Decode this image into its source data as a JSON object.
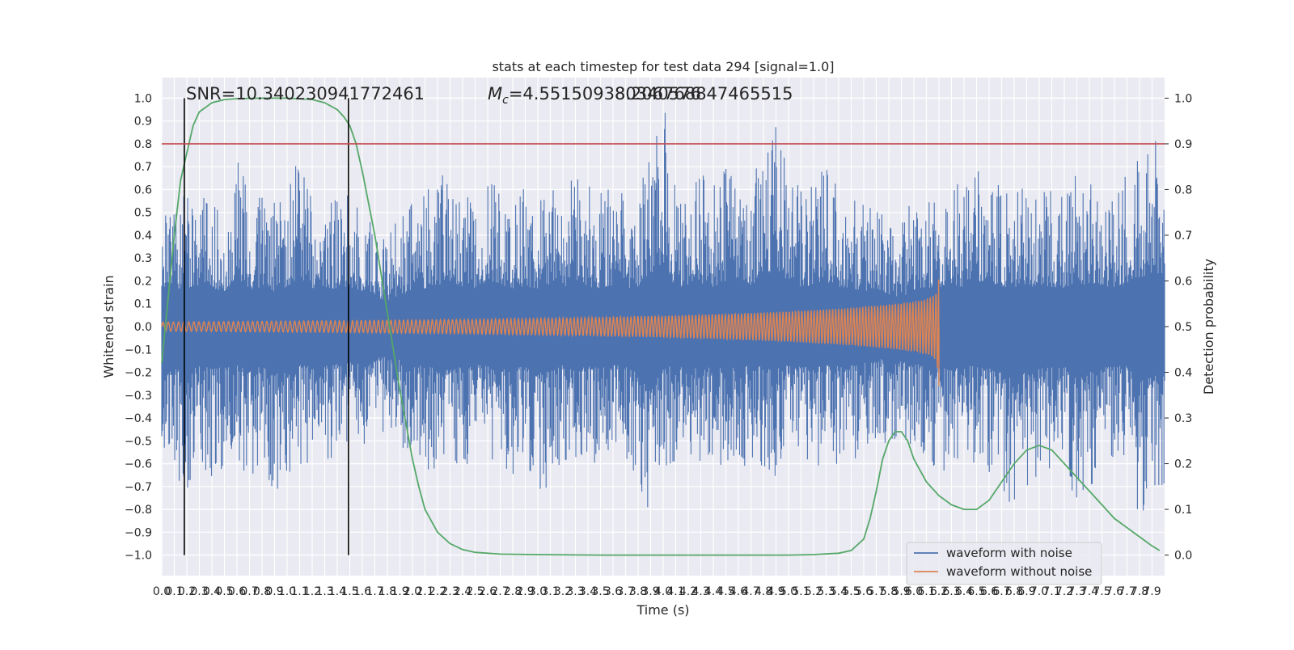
{
  "chart_data": {
    "type": "line",
    "title": "stats at each timestep for test data 294 [signal=1.0]",
    "xlabel": "Time (s)",
    "ylabel_left": "Whitened strain",
    "ylabel_right": "Detection probability",
    "xlim": [
      0.0,
      8.0
    ],
    "ylim_left": [
      -1.09,
      1.09
    ],
    "ylim_right": [
      -0.045,
      1.045
    ],
    "grid": true,
    "legend_position": "lower-right",
    "x_tick_labels": [
      "0.0",
      "0.1",
      "0.2",
      "0.3",
      "0.4",
      "0.5",
      "0.6",
      "0.7",
      "0.8",
      "0.9",
      "1.0",
      "1.1",
      "1.2",
      "1.3",
      "1.4",
      "1.5",
      "1.6",
      "1.7",
      "1.8",
      "1.9",
      "2.0",
      "2.1",
      "2.2",
      "2.3",
      "2.4",
      "2.5",
      "2.6",
      "2.7",
      "2.8",
      "2.9",
      "3.0",
      "3.1",
      "3.2",
      "3.3",
      "3.4",
      "3.5",
      "3.6",
      "3.7",
      "3.8",
      "3.9",
      "4.0",
      "4.1",
      "4.2",
      "4.3",
      "4.4",
      "4.5",
      "4.6",
      "4.7",
      "4.8",
      "4.9",
      "5.0",
      "5.1",
      "5.2",
      "5.3",
      "5.4",
      "5.5",
      "5.6",
      "5.7",
      "5.8",
      "5.9",
      "6.0",
      "6.1",
      "6.2",
      "6.3",
      "6.4",
      "6.5",
      "6.6",
      "6.7",
      "6.8",
      "6.9",
      "7.0",
      "7.1",
      "7.2",
      "7.3",
      "7.4",
      "7.5",
      "7.6",
      "7.7",
      "7.8",
      "7.9"
    ],
    "y_tick_labels_left": [
      "−1.0",
      "−0.9",
      "−0.8",
      "−0.7",
      "−0.6",
      "−0.5",
      "−0.4",
      "−0.3",
      "−0.2",
      "−0.1",
      "0.0",
      "0.1",
      "0.2",
      "0.3",
      "0.4",
      "0.5",
      "0.6",
      "0.7",
      "0.8",
      "0.9",
      "1.0"
    ],
    "y_tick_labels_right": [
      "0.0",
      "0.1",
      "0.2",
      "0.3",
      "0.4",
      "0.5",
      "0.6",
      "0.7",
      "0.8",
      "0.9",
      "1.0"
    ],
    "annotations": {
      "snr": "SNR=10.340230941772461",
      "mc_prefix": "M",
      "mc_sub": "c",
      "mc_value": "=4.551509380340576",
      "overlap": "8.206768847465515"
    },
    "markers": {
      "vertical_lines_x": [
        0.18,
        1.49
      ],
      "threshold_right_y": 0.9
    },
    "series": [
      {
        "name": "waveform with noise",
        "color": "#4c72b0",
        "axis": "left",
        "envelope_x": [
          0.0,
          0.1,
          0.2,
          0.3,
          0.4,
          0.5,
          0.6,
          0.7,
          0.8,
          0.9,
          1.0,
          1.1,
          1.2,
          1.3,
          1.4,
          1.5,
          1.6,
          1.7,
          1.8,
          1.9,
          2.0,
          2.1,
          2.2,
          2.3,
          2.4,
          2.5,
          2.6,
          2.7,
          2.8,
          2.9,
          3.0,
          3.1,
          3.2,
          3.3,
          3.4,
          3.5,
          3.6,
          3.7,
          3.8,
          3.9,
          4.0,
          4.1,
          4.2,
          4.3,
          4.4,
          4.5,
          4.6,
          4.7,
          4.8,
          4.9,
          5.0,
          5.1,
          5.2,
          5.3,
          5.4,
          5.5,
          5.6,
          5.7,
          5.8,
          5.9,
          6.0,
          6.1,
          6.2,
          6.3,
          6.4,
          6.5,
          6.6,
          6.7,
          6.8,
          6.9,
          7.0,
          7.1,
          7.2,
          7.3,
          7.4,
          7.5,
          7.6,
          7.7,
          7.8,
          7.9
        ],
        "envelope_max": [
          0.62,
          0.58,
          0.6,
          0.65,
          0.6,
          0.55,
          0.76,
          0.58,
          0.6,
          0.55,
          0.62,
          0.77,
          0.6,
          0.57,
          0.55,
          0.62,
          0.55,
          0.45,
          0.4,
          0.5,
          0.55,
          0.6,
          0.65,
          0.7,
          0.62,
          0.6,
          0.7,
          0.65,
          0.6,
          0.62,
          0.6,
          0.65,
          0.6,
          0.7,
          0.62,
          0.6,
          0.65,
          0.6,
          0.62,
          0.82,
          1.0,
          0.6,
          0.65,
          0.68,
          0.62,
          0.7,
          0.75,
          0.65,
          0.78,
          0.9,
          0.68,
          0.6,
          0.65,
          0.7,
          0.62,
          0.6,
          0.55,
          0.6,
          0.5,
          0.45,
          0.58,
          0.6,
          0.62,
          0.65,
          0.6,
          0.68,
          0.7,
          0.62,
          0.6,
          0.65,
          0.6,
          0.62,
          0.6,
          0.7,
          0.62,
          0.65,
          0.6,
          0.68,
          0.75,
          0.83
        ],
        "envelope_min": [
          -0.72,
          -0.65,
          -0.74,
          -0.6,
          -0.66,
          -0.63,
          -0.6,
          -0.68,
          -0.62,
          -0.75,
          -0.66,
          -0.6,
          -0.62,
          -0.6,
          -0.58,
          -0.55,
          -0.6,
          -0.5,
          -0.45,
          -0.52,
          -0.58,
          -0.62,
          -0.65,
          -0.68,
          -0.62,
          -0.6,
          -0.6,
          -0.66,
          -0.65,
          -0.62,
          -0.72,
          -0.7,
          -0.6,
          -0.66,
          -0.62,
          -0.65,
          -0.6,
          -0.62,
          -0.72,
          -0.98,
          -0.65,
          -0.6,
          -0.62,
          -0.66,
          -0.6,
          -0.62,
          -0.65,
          -0.6,
          -0.62,
          -0.66,
          -0.6,
          -0.62,
          -0.65,
          -0.6,
          -0.62,
          -0.6,
          -0.55,
          -0.5,
          -0.52,
          -0.55,
          -0.58,
          -0.6,
          -0.62,
          -0.65,
          -0.6,
          -0.62,
          -0.65,
          -0.72,
          -0.8,
          -0.7,
          -0.66,
          -0.62,
          -0.6,
          -0.82,
          -0.7,
          -0.65,
          -0.6,
          -0.62,
          -0.84,
          -0.76
        ]
      },
      {
        "name": "waveform without noise",
        "color": "#dd8452",
        "axis": "left",
        "envelope_x": [
          0.0,
          0.5,
          1.0,
          1.5,
          2.0,
          2.5,
          3.0,
          3.5,
          4.0,
          4.5,
          5.0,
          5.5,
          5.8,
          6.0,
          6.1,
          6.15,
          6.18,
          6.2
        ],
        "envelope_amp": [
          0.02,
          0.022,
          0.024,
          0.026,
          0.029,
          0.032,
          0.036,
          0.041,
          0.047,
          0.055,
          0.066,
          0.082,
          0.097,
          0.11,
          0.122,
          0.135,
          0.15,
          0.23
        ]
      },
      {
        "name": "",
        "color": "#55a868",
        "axis": "right",
        "x": [
          0.0,
          0.05,
          0.1,
          0.15,
          0.2,
          0.25,
          0.3,
          0.4,
          0.5,
          0.6,
          0.8,
          1.0,
          1.2,
          1.3,
          1.4,
          1.45,
          1.5,
          1.55,
          1.6,
          1.7,
          1.8,
          1.9,
          2.0,
          2.05,
          2.1,
          2.2,
          2.3,
          2.4,
          2.5,
          2.7,
          3.0,
          3.5,
          4.0,
          4.5,
          5.0,
          5.2,
          5.4,
          5.5,
          5.6,
          5.65,
          5.7,
          5.75,
          5.8,
          5.85,
          5.9,
          5.95,
          6.0,
          6.1,
          6.2,
          6.3,
          6.4,
          6.5,
          6.6,
          6.7,
          6.8,
          6.9,
          7.0,
          7.1,
          7.2,
          7.3,
          7.4,
          7.5,
          7.6,
          7.7,
          7.8,
          7.9,
          7.96
        ],
        "y": [
          0.42,
          0.56,
          0.7,
          0.82,
          0.88,
          0.94,
          0.97,
          0.99,
          0.997,
          0.999,
          1.0,
          1.0,
          0.997,
          0.99,
          0.975,
          0.96,
          0.94,
          0.9,
          0.84,
          0.7,
          0.53,
          0.36,
          0.21,
          0.15,
          0.1,
          0.05,
          0.025,
          0.012,
          0.006,
          0.002,
          0.001,
          0.0,
          0.0,
          0.0,
          0.0,
          0.001,
          0.004,
          0.01,
          0.035,
          0.08,
          0.14,
          0.21,
          0.25,
          0.27,
          0.27,
          0.25,
          0.21,
          0.16,
          0.13,
          0.11,
          0.1,
          0.1,
          0.12,
          0.16,
          0.2,
          0.23,
          0.24,
          0.23,
          0.2,
          0.17,
          0.14,
          0.11,
          0.08,
          0.06,
          0.04,
          0.02,
          0.01
        ]
      }
    ]
  },
  "legend": [
    {
      "label": "waveform with noise",
      "color": "#4c72b0"
    },
    {
      "label": "waveform without noise",
      "color": "#dd8452"
    }
  ]
}
